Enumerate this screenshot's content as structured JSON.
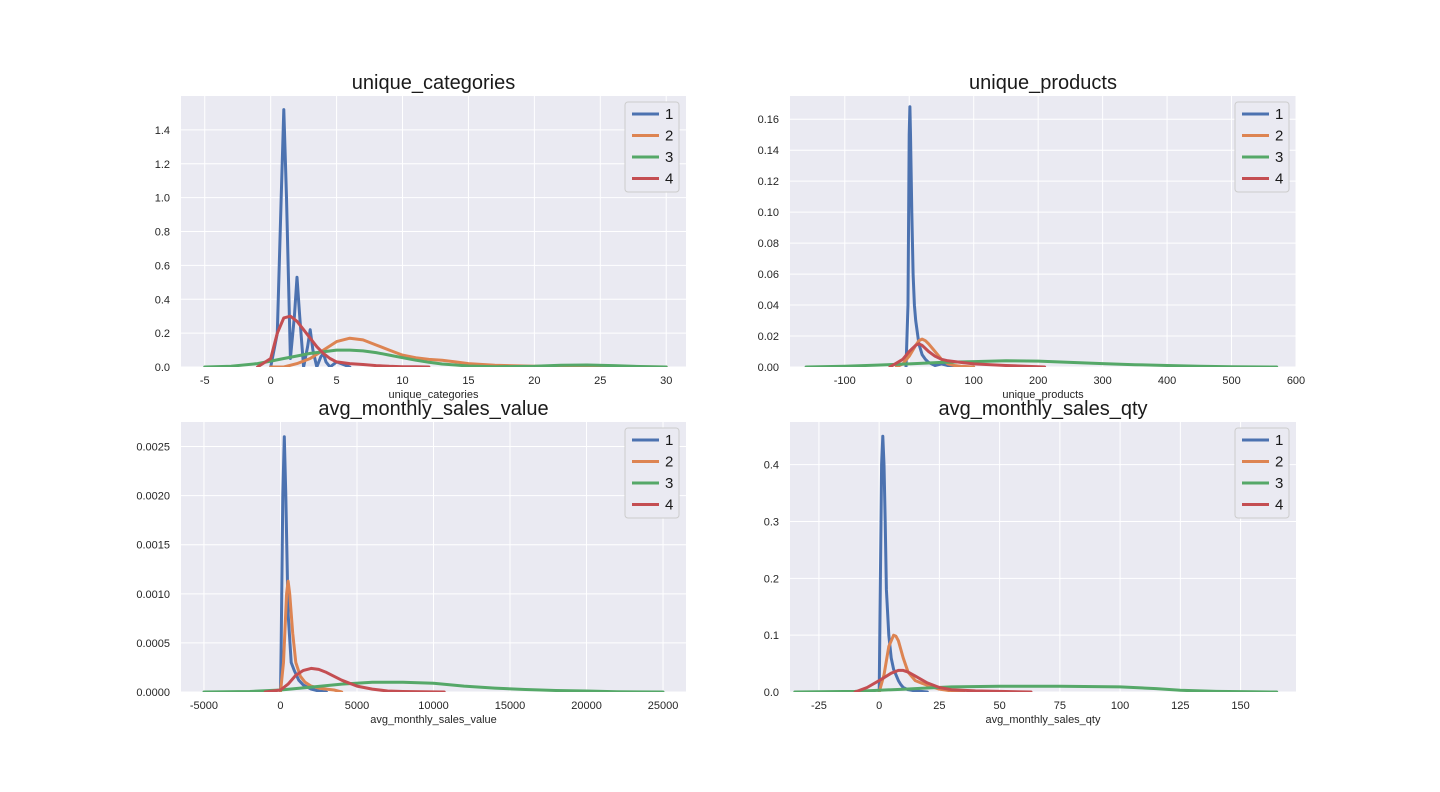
{
  "chart_data": [
    {
      "type": "line",
      "title": "unique_categories",
      "xlabel": "unique_categories",
      "ylabel": "",
      "xlim": [
        -6.8,
        31.5
      ],
      "ylim": [
        0,
        1.6
      ],
      "xticks": [
        -5,
        0,
        5,
        10,
        15,
        20,
        25,
        30
      ],
      "yticks": [
        0.0,
        0.2,
        0.4,
        0.6,
        0.8,
        1.0,
        1.2,
        1.4
      ],
      "ytick_labels": [
        "0.0",
        "0.2",
        "0.4",
        "0.6",
        "0.8",
        "1.0",
        "1.2",
        "1.4"
      ],
      "grid": true,
      "legend_position": "top-right",
      "series": [
        {
          "name": "1",
          "color": "#4c72b0",
          "x": [
            0.0,
            0.5,
            0.8,
            1.0,
            1.2,
            1.5,
            1.8,
            2.0,
            2.2,
            2.5,
            2.8,
            3.0,
            3.2,
            3.5,
            3.8,
            4.0,
            4.2,
            4.5,
            5.0,
            6.0
          ],
          "y": [
            0.0,
            0.2,
            1.0,
            1.52,
            1.0,
            0.05,
            0.3,
            0.53,
            0.3,
            0.0,
            0.12,
            0.22,
            0.1,
            0.0,
            0.06,
            0.08,
            0.03,
            0.0,
            0.03,
            0.0
          ]
        },
        {
          "name": "2",
          "color": "#dd8452",
          "x": [
            0.0,
            1.0,
            2.0,
            3.0,
            4.0,
            5.0,
            6.0,
            7.0,
            8.0,
            9.0,
            10.0,
            11.0,
            12.0,
            13.0,
            14.0,
            15.0,
            17.0,
            20.0,
            25.0,
            30.0
          ],
          "y": [
            0.0,
            0.0,
            0.02,
            0.05,
            0.1,
            0.15,
            0.17,
            0.16,
            0.13,
            0.1,
            0.07,
            0.055,
            0.045,
            0.04,
            0.03,
            0.02,
            0.01,
            0.005,
            0.002,
            0.0
          ]
        },
        {
          "name": "3",
          "color": "#55a868",
          "x": [
            -5.0,
            -3.0,
            -1.0,
            0.0,
            1.0,
            2.0,
            3.0,
            4.0,
            5.0,
            6.0,
            7.0,
            8.0,
            9.0,
            10.0,
            11.0,
            12.0,
            13.0,
            15.0,
            17.0,
            20.0,
            22.0,
            24.0,
            26.0,
            28.0,
            30.0
          ],
          "y": [
            0.0,
            0.005,
            0.02,
            0.035,
            0.05,
            0.065,
            0.08,
            0.09,
            0.1,
            0.1,
            0.095,
            0.085,
            0.07,
            0.055,
            0.04,
            0.028,
            0.018,
            0.006,
            0.002,
            0.004,
            0.01,
            0.012,
            0.008,
            0.003,
            0.0
          ]
        },
        {
          "name": "4",
          "color": "#c44e52",
          "x": [
            -1.0,
            0.0,
            0.5,
            1.0,
            1.5,
            2.0,
            2.5,
            3.0,
            3.5,
            4.0,
            4.5,
            5.0,
            6.0,
            7.0,
            8.0,
            9.0,
            10.0,
            11.0,
            12.0
          ],
          "y": [
            0.0,
            0.05,
            0.2,
            0.29,
            0.3,
            0.27,
            0.22,
            0.17,
            0.12,
            0.08,
            0.05,
            0.03,
            0.02,
            0.015,
            0.008,
            0.004,
            0.002,
            0.001,
            0.0
          ]
        }
      ]
    },
    {
      "type": "line",
      "title": "unique_products",
      "xlabel": "unique_products",
      "ylabel": "",
      "xlim": [
        -185,
        600
      ],
      "ylim": [
        0,
        0.175
      ],
      "xticks": [
        -100,
        0,
        100,
        200,
        300,
        400,
        500,
        600
      ],
      "yticks": [
        0.0,
        0.02,
        0.04,
        0.06,
        0.08,
        0.1,
        0.12,
        0.14,
        0.16
      ],
      "ytick_labels": [
        "0.00",
        "0.02",
        "0.04",
        "0.06",
        "0.08",
        "0.10",
        "0.12",
        "0.14",
        "0.16"
      ],
      "grid": true,
      "legend_position": "top-right",
      "series": [
        {
          "name": "1",
          "color": "#4c72b0",
          "x": [
            -5,
            -2,
            0,
            1,
            2,
            4,
            6,
            8,
            10,
            15,
            20,
            25,
            30,
            40,
            50,
            60,
            75
          ],
          "y": [
            0.0,
            0.04,
            0.15,
            0.168,
            0.15,
            0.1,
            0.06,
            0.04,
            0.03,
            0.015,
            0.008,
            0.005,
            0.003,
            0.001,
            0.002,
            0.001,
            0.0
          ]
        },
        {
          "name": "2",
          "color": "#dd8452",
          "x": [
            -20,
            -10,
            0,
            10,
            15,
            20,
            25,
            30,
            40,
            50,
            60,
            70,
            80,
            100
          ],
          "y": [
            0.0,
            0.002,
            0.007,
            0.014,
            0.017,
            0.018,
            0.017,
            0.015,
            0.01,
            0.005,
            0.002,
            0.001,
            0.0005,
            0.0
          ]
        },
        {
          "name": "3",
          "color": "#55a868",
          "x": [
            -160,
            -100,
            -50,
            0,
            50,
            100,
            150,
            200,
            250,
            300,
            350,
            400,
            450,
            500,
            570
          ],
          "y": [
            0.0,
            0.0005,
            0.0012,
            0.002,
            0.003,
            0.0035,
            0.004,
            0.0038,
            0.003,
            0.0022,
            0.0015,
            0.001,
            0.0005,
            0.0002,
            0.0
          ]
        },
        {
          "name": "4",
          "color": "#c44e52",
          "x": [
            -30,
            -10,
            0,
            10,
            15,
            20,
            30,
            40,
            50,
            60,
            80,
            100,
            150,
            210
          ],
          "y": [
            0.0,
            0.005,
            0.01,
            0.014,
            0.015,
            0.014,
            0.01,
            0.007,
            0.005,
            0.004,
            0.003,
            0.002,
            0.001,
            0.0
          ]
        }
      ]
    },
    {
      "type": "line",
      "title": "avg_monthly_sales_value",
      "xlabel": "avg_monthly_sales_value",
      "ylabel": "",
      "xlim": [
        -6500,
        26500
      ],
      "ylim": [
        0,
        0.00275
      ],
      "xticks": [
        -5000,
        0,
        5000,
        10000,
        15000,
        20000,
        25000
      ],
      "yticks": [
        0.0,
        0.0005,
        0.001,
        0.0015,
        0.002,
        0.0025
      ],
      "ytick_labels": [
        "0.0000",
        "0.0005",
        "0.0010",
        "0.0015",
        "0.0020",
        "0.0025"
      ],
      "grid": true,
      "legend_position": "top-right",
      "series": [
        {
          "name": "1",
          "color": "#4c72b0",
          "x": [
            0,
            50,
            150,
            250,
            350,
            500,
            700,
            900,
            1200,
            1500,
            2000,
            2500,
            3000
          ],
          "y": [
            0.0,
            0.0005,
            0.002,
            0.0026,
            0.002,
            0.0008,
            0.0003,
            0.00022,
            0.00012,
            7e-05,
            3e-05,
            1e-05,
            0.0
          ]
        },
        {
          "name": "2",
          "color": "#dd8452",
          "x": [
            0,
            200,
            400,
            500,
            600,
            800,
            1000,
            1300,
            1600,
            2000,
            2500,
            3000,
            3500,
            4000
          ],
          "y": [
            0.0,
            0.0003,
            0.001,
            0.00113,
            0.001,
            0.0006,
            0.0003,
            0.00016,
            0.0001,
            6e-05,
            4e-05,
            3e-05,
            2e-05,
            0.0
          ]
        },
        {
          "name": "3",
          "color": "#55a868",
          "x": [
            -5000,
            -2000,
            0,
            2000,
            4000,
            6000,
            8000,
            10000,
            12000,
            14000,
            16000,
            18000,
            20000,
            22000,
            25000
          ],
          "y": [
            0.0,
            5e-06,
            2e-05,
            5e-05,
            8e-05,
            0.0001,
            0.0001,
            9e-05,
            6e-05,
            4e-05,
            2.5e-05,
            1.5e-05,
            1e-05,
            3e-06,
            0.0
          ]
        },
        {
          "name": "4",
          "color": "#c44e52",
          "x": [
            -1000,
            0,
            500,
            1000,
            1500,
            2000,
            2500,
            3000,
            4000,
            5000,
            6000,
            7000,
            8000,
            10700
          ],
          "y": [
            0.0,
            2e-05,
            8e-05,
            0.00017,
            0.00022,
            0.00024,
            0.00023,
            0.0002,
            0.00012,
            6e-05,
            3e-05,
            1e-05,
            5e-06,
            0.0
          ]
        }
      ]
    },
    {
      "type": "line",
      "title": "avg_monthly_sales_qty",
      "xlabel": "avg_monthly_sales_qty",
      "ylabel": "",
      "xlim": [
        -37,
        173
      ],
      "ylim": [
        0,
        0.475
      ],
      "xticks": [
        -25,
        0,
        25,
        50,
        75,
        100,
        125,
        150
      ],
      "yticks": [
        0.0,
        0.1,
        0.2,
        0.3,
        0.4
      ],
      "ytick_labels": [
        "0.0",
        "0.1",
        "0.2",
        "0.3",
        "0.4"
      ],
      "grid": true,
      "legend_position": "top-right",
      "series": [
        {
          "name": "1",
          "color": "#4c72b0",
          "x": [
            0,
            0.5,
            1.0,
            1.5,
            2.0,
            2.5,
            3.0,
            4.0,
            5.0,
            6.0,
            7.0,
            8.0,
            9.0,
            10.0,
            12.0,
            15.0,
            20.0
          ],
          "y": [
            0.0,
            0.2,
            0.4,
            0.45,
            0.4,
            0.3,
            0.18,
            0.1,
            0.06,
            0.04,
            0.03,
            0.02,
            0.013,
            0.008,
            0.004,
            0.002,
            0.0
          ]
        },
        {
          "name": "2",
          "color": "#dd8452",
          "x": [
            0,
            2,
            4,
            6,
            7,
            8,
            10,
            12,
            15,
            18,
            20,
            25,
            30,
            35
          ],
          "y": [
            0.0,
            0.03,
            0.08,
            0.1,
            0.098,
            0.09,
            0.06,
            0.035,
            0.02,
            0.015,
            0.012,
            0.005,
            0.002,
            0.0
          ]
        },
        {
          "name": "3",
          "color": "#55a868",
          "x": [
            -35,
            -10,
            0,
            10,
            20,
            30,
            50,
            75,
            100,
            115,
            125,
            140,
            155,
            165
          ],
          "y": [
            0.0,
            0.001,
            0.003,
            0.005,
            0.007,
            0.009,
            0.01,
            0.01,
            0.009,
            0.006,
            0.003,
            0.001,
            0.0003,
            0.0
          ]
        },
        {
          "name": "4",
          "color": "#c44e52",
          "x": [
            -10,
            -5,
            0,
            5,
            8,
            10,
            12,
            15,
            20,
            25,
            30,
            40,
            50,
            63
          ],
          "y": [
            0.0,
            0.008,
            0.02,
            0.033,
            0.038,
            0.038,
            0.035,
            0.028,
            0.016,
            0.008,
            0.004,
            0.002,
            0.001,
            0.0
          ]
        }
      ]
    }
  ]
}
